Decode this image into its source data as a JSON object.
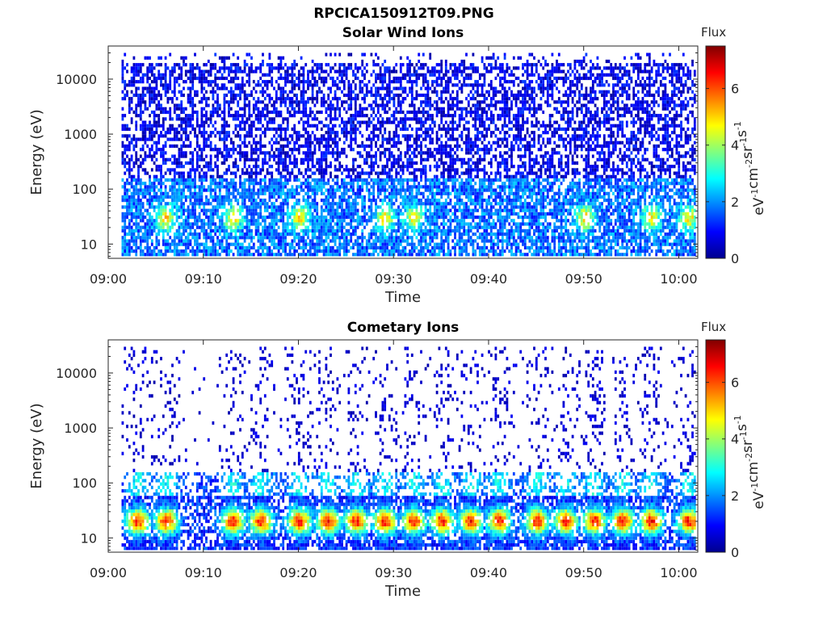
{
  "figure": {
    "title": "RPCICA150912T09.PNG"
  },
  "colormap": {
    "name": "jet",
    "stops": [
      "#00008f",
      "#0000ff",
      "#00ffff",
      "#ffff00",
      "#ff0000",
      "#800000"
    ]
  },
  "chart_data": [
    {
      "type": "heatmap",
      "title": "Solar Wind Ions",
      "xlabel": "Time",
      "ylabel": "Energy (eV)",
      "y_scale": "log",
      "ylim": [
        5.5,
        40000
      ],
      "xlim": [
        "09:00",
        "10:02"
      ],
      "xticks": [
        "09:00",
        "09:10",
        "09:20",
        "09:30",
        "09:40",
        "09:50",
        "10:00"
      ],
      "yticks": [
        "10",
        "100",
        "1000",
        "10000"
      ],
      "colorbar": {
        "label": "Flux",
        "unit": "eV-1cm-2sr-1s-1",
        "ticks": [
          "0",
          "2",
          "4",
          "6"
        ],
        "range": [
          0,
          7.5
        ]
      },
      "flux_bands": [
        {
          "energy": 30,
          "peak_flux": 4.5,
          "peak_times": [
            "09:06",
            "09:13",
            "09:20",
            "09:29",
            "09:32",
            "09:50",
            "09:57",
            "10:01"
          ]
        },
        {
          "energy": 60,
          "peak_flux": 3.0
        },
        {
          "energy": 500,
          "peak_flux": 1.2
        },
        {
          "energy": 5000,
          "peak_flux": 1.0
        }
      ]
    },
    {
      "type": "heatmap",
      "title": "Cometary Ions",
      "xlabel": "Time",
      "ylabel": "Energy (eV)",
      "y_scale": "log",
      "ylim": [
        5.5,
        40000
      ],
      "xlim": [
        "09:00",
        "10:02"
      ],
      "xticks": [
        "09:00",
        "09:10",
        "09:20",
        "09:30",
        "09:40",
        "09:50",
        "10:00"
      ],
      "yticks": [
        "10",
        "100",
        "1000",
        "10000"
      ],
      "colorbar": {
        "label": "Flux",
        "unit": "eV-1cm-2sr-1s-1",
        "ticks": [
          "0",
          "2",
          "4",
          "6"
        ],
        "range": [
          0,
          7.5
        ]
      },
      "flux_bands": [
        {
          "energy": 20,
          "peak_flux": 6.5,
          "peak_times": [
            "09:03",
            "09:06",
            "09:13",
            "09:16",
            "09:20",
            "09:23",
            "09:26",
            "09:29",
            "09:32",
            "09:35",
            "09:38",
            "09:41",
            "09:45",
            "09:48",
            "09:51",
            "09:54",
            "09:57",
            "10:01"
          ]
        },
        {
          "energy": 100,
          "peak_flux": 2.5
        },
        {
          "energy": 1000,
          "peak_flux": 0.8
        }
      ]
    }
  ]
}
